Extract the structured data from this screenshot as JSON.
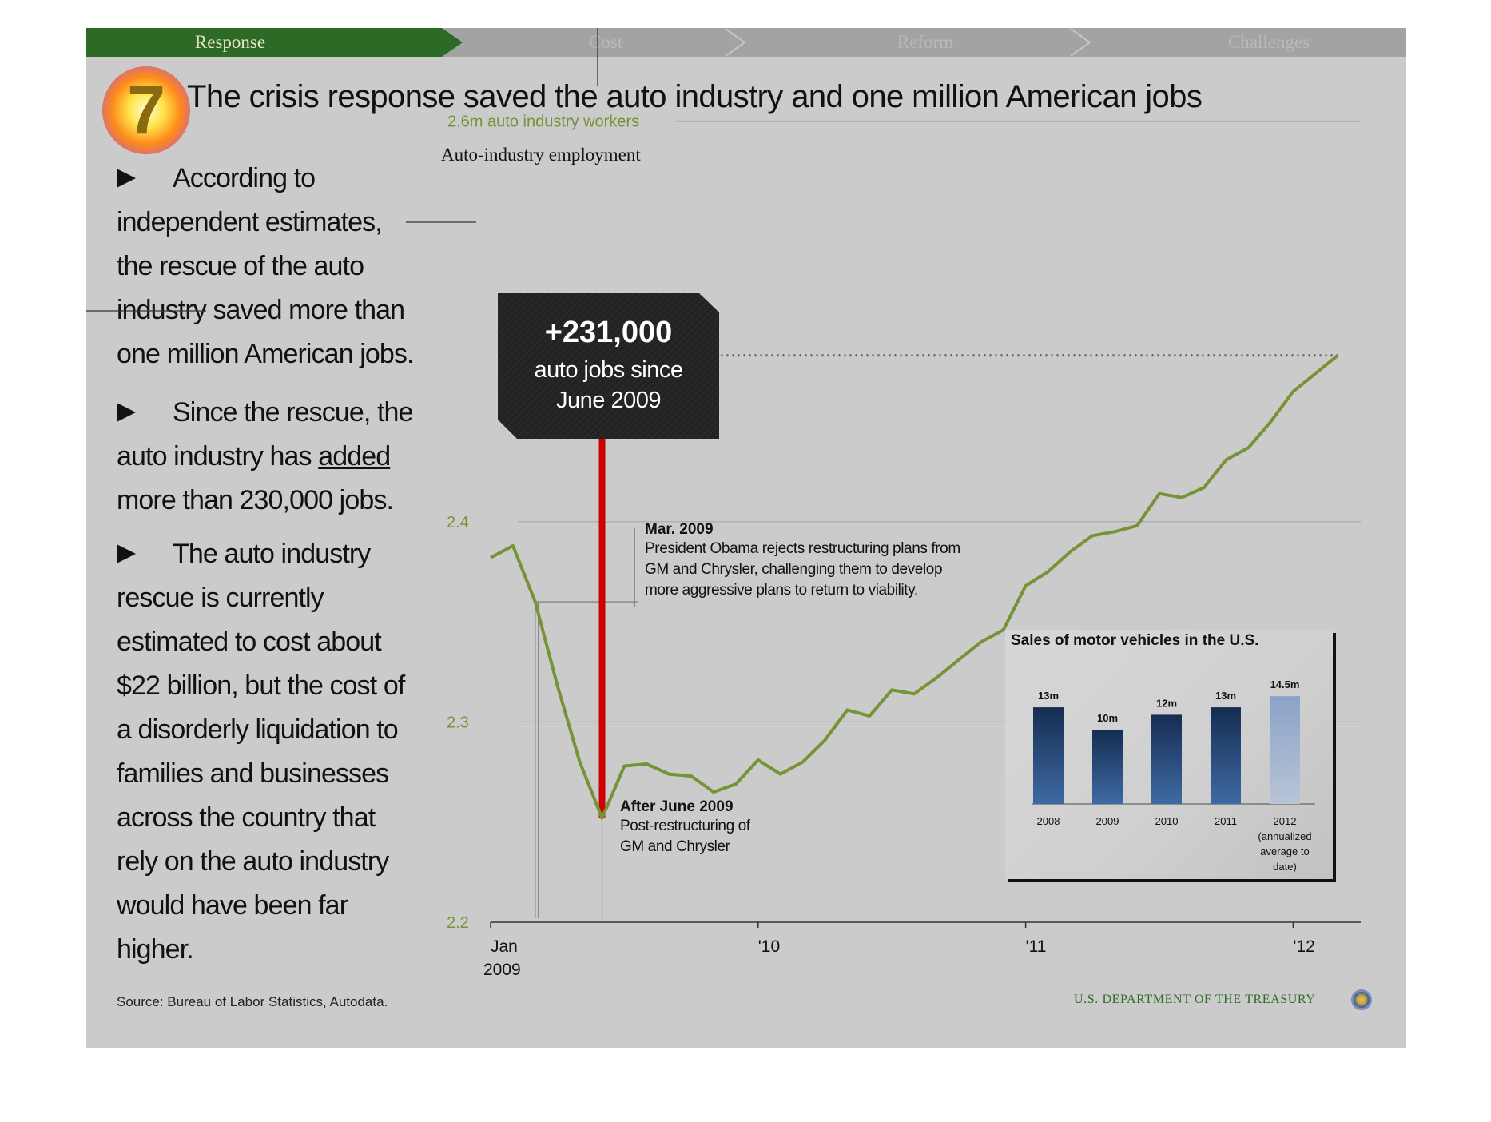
{
  "nav": {
    "tabs": [
      {
        "label": "Response",
        "active": true
      },
      {
        "label": "Cost",
        "active": false
      },
      {
        "label": "Reform",
        "active": false
      },
      {
        "label": "Challenges",
        "active": false
      }
    ]
  },
  "slide_number": "7",
  "page_title": "The crisis response saved the auto industry and one million American jobs",
  "bullets": [
    {
      "text": "According to independent estimates, the rescue of the auto industry saved more than one million American jobs."
    },
    {
      "before": "Since the rescue, the auto industry has ",
      "emphasis": "added",
      "after": " more than 230,000 jobs."
    },
    {
      "text": "The auto industry rescue is currently estimated to cost about $22 billion, but the cost of a disorderly liquidation to families and businesses across the country that rely on the auto industry would have been far higher."
    }
  ],
  "source": "Source: Bureau of Labor Statistics, Autodata.",
  "footer_org": "U.S. DEPARTMENT OF THE TREASURY",
  "callout": {
    "value": "+231,000",
    "line1": "auto jobs since",
    "line2": "June 2009"
  },
  "annotations": {
    "mar2009": {
      "heading": "Mar. 2009",
      "lines": [
        "President Obama rejects restructuring plans from",
        "GM and Chrysler, challenging them to develop",
        "more aggressive plans to return to viability."
      ]
    },
    "jun2009": {
      "heading": "After June 2009",
      "lines": [
        "Post-restructuring of",
        "GM and Chrysler"
      ]
    }
  },
  "colors": {
    "line": "#779338",
    "accent_red": "#cc0000",
    "nav_green": "#2d6a25",
    "bar_dark": "#1f3d66",
    "bar_light": "#9fb2cf"
  },
  "chart_data": [
    {
      "type": "line",
      "title": "Auto-industry employment",
      "ylabel": "",
      "yunit_label": "2.6m auto industry workers",
      "ylim": [
        2.2,
        2.6
      ],
      "yticks": [
        {
          "value": 2.2,
          "label": "2.2"
        },
        {
          "value": 2.3,
          "label": "2.3"
        },
        {
          "value": 2.4,
          "label": "2.4"
        },
        {
          "value": 2.6,
          "label": "2.6m auto industry workers"
        }
      ],
      "xticks": [
        {
          "month": 0,
          "label": "Jan",
          "sublabel": "2009"
        },
        {
          "month": 12,
          "label": "'10"
        },
        {
          "month": 24,
          "label": "'11"
        },
        {
          "month": 36,
          "label": "'12"
        }
      ],
      "xlim": [
        0,
        39
      ],
      "grid": true,
      "reference_level": 2.483,
      "series": [
        {
          "values": [
            {
              "month": 0,
              "y": 2.382
            },
            {
              "month": 1,
              "y": 2.388
            },
            {
              "month": 2,
              "y": 2.36
            },
            {
              "month": 3,
              "y": 2.318
            },
            {
              "month": 4,
              "y": 2.28
            },
            {
              "month": 5,
              "y": 2.252
            },
            {
              "month": 6,
              "y": 2.278
            },
            {
              "month": 7,
              "y": 2.279
            },
            {
              "month": 8,
              "y": 2.274
            },
            {
              "month": 9,
              "y": 2.273
            },
            {
              "month": 10,
              "y": 2.265
            },
            {
              "month": 11,
              "y": 2.269
            },
            {
              "month": 12,
              "y": 2.281
            },
            {
              "month": 13,
              "y": 2.274
            },
            {
              "month": 14,
              "y": 2.28
            },
            {
              "month": 15,
              "y": 2.291
            },
            {
              "month": 16,
              "y": 2.306
            },
            {
              "month": 17,
              "y": 2.303
            },
            {
              "month": 18,
              "y": 2.316
            },
            {
              "month": 19,
              "y": 2.314
            },
            {
              "month": 20,
              "y": 2.322
            },
            {
              "month": 21,
              "y": 2.331
            },
            {
              "month": 22,
              "y": 2.34
            },
            {
              "month": 23,
              "y": 2.346
            },
            {
              "month": 24,
              "y": 2.368
            },
            {
              "month": 25,
              "y": 2.375
            },
            {
              "month": 26,
              "y": 2.385
            },
            {
              "month": 27,
              "y": 2.393
            },
            {
              "month": 28,
              "y": 2.395
            },
            {
              "month": 29,
              "y": 2.398
            },
            {
              "month": 30,
              "y": 2.414
            },
            {
              "month": 31,
              "y": 2.412
            },
            {
              "month": 32,
              "y": 2.417
            },
            {
              "month": 33,
              "y": 2.431
            },
            {
              "month": 34,
              "y": 2.437
            },
            {
              "month": 35,
              "y": 2.45
            },
            {
              "month": 36,
              "y": 2.465
            },
            {
              "month": 37,
              "y": 2.474
            },
            {
              "month": 38,
              "y": 2.483
            }
          ]
        }
      ]
    },
    {
      "type": "bar",
      "title": "Sales of motor vehicles in the U.S.",
      "categories": [
        "2008",
        "2009",
        "2010",
        "2011",
        "2012 (annualized average to date)"
      ],
      "values": [
        13,
        10,
        12,
        13,
        14.5
      ],
      "value_labels": [
        "13m",
        "10m",
        "12m",
        "13m",
        "14.5m"
      ],
      "ylim": [
        0,
        16
      ]
    }
  ]
}
